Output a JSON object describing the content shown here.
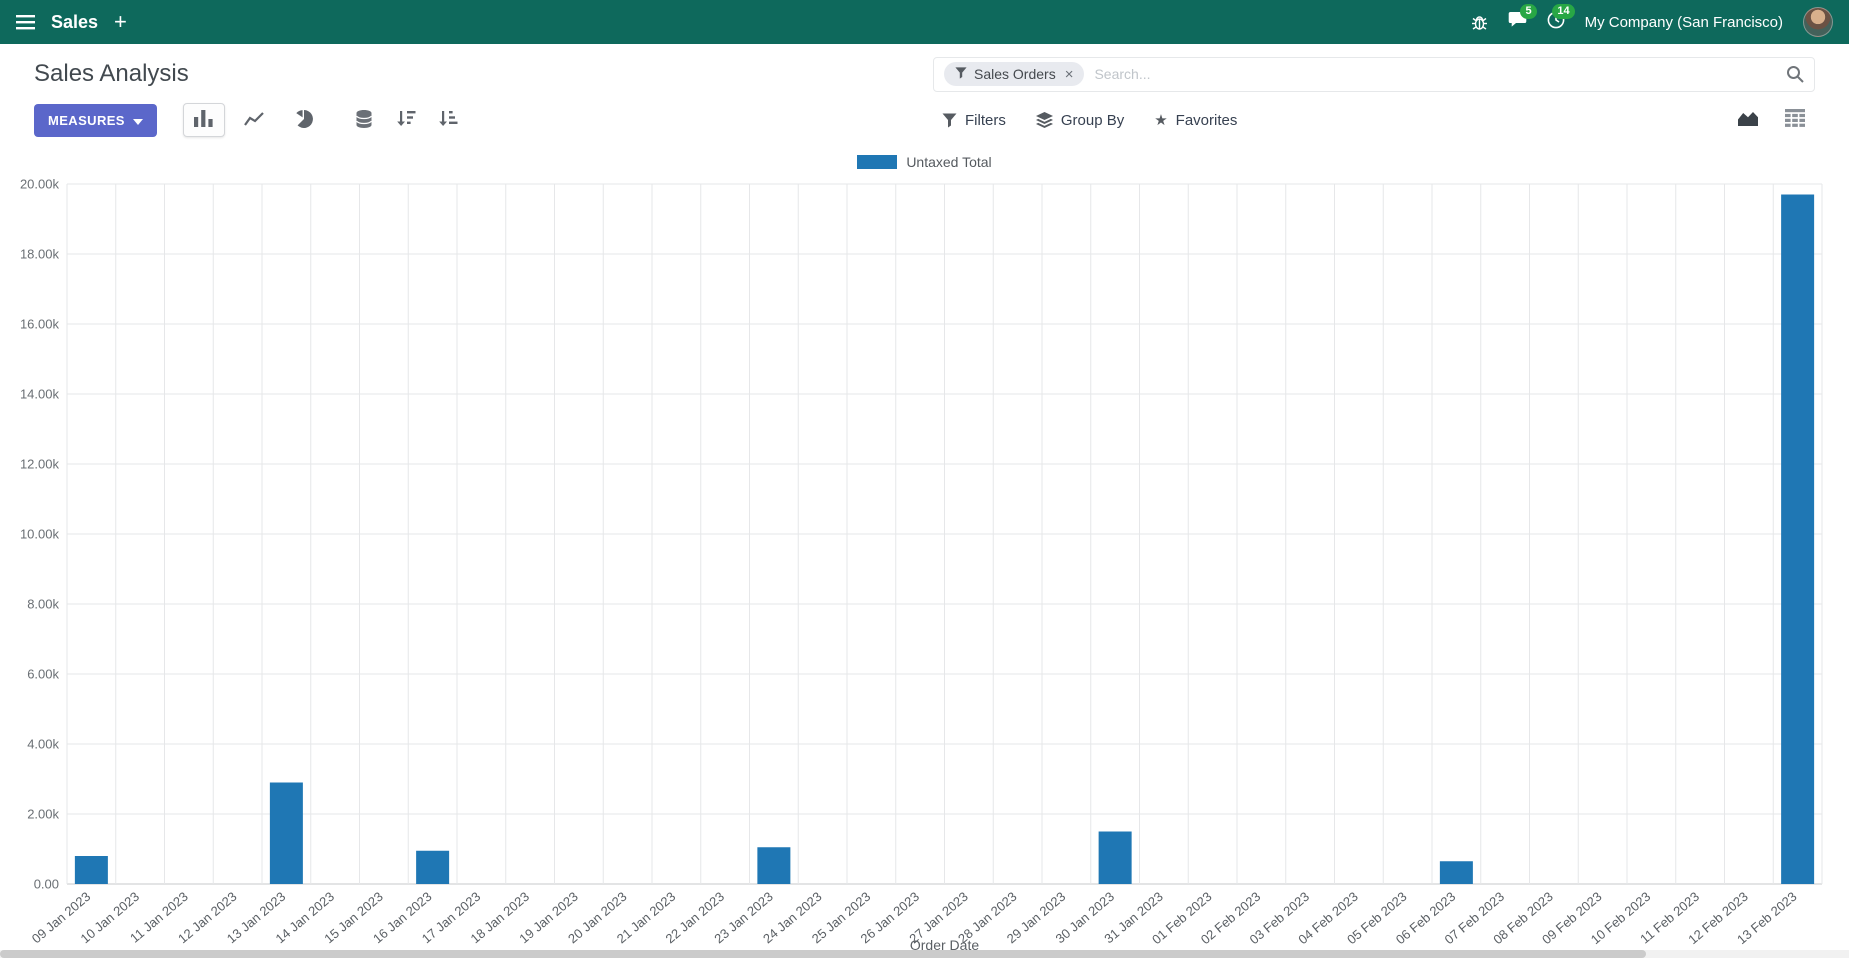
{
  "colors": {
    "navbar_bg": "#0e695c",
    "primary_button": "#5b67ca",
    "badge_green": "#28a745",
    "bar_blue": "#1f77b4"
  },
  "navbar": {
    "app_name": "Sales",
    "new_window_label": "+",
    "messages_count": "5",
    "activities_count": "14",
    "company": "My Company (San Francisco)"
  },
  "control_panel": {
    "title": "Sales Analysis",
    "search": {
      "facet_label": "Sales Orders",
      "facet_remove": "×",
      "placeholder": "Search..."
    },
    "measures_label": "Measures",
    "filters_label": "Filters",
    "group_by_label": "Group By",
    "favorites_label": "Favorites",
    "favorites_star": "★"
  },
  "icons": {
    "apps-menu-icon": "hamburger",
    "new-window-icon": "plus",
    "debug-icon": "bug",
    "messages-icon": "speech-bubble",
    "activities-icon": "clock",
    "bar-chart-icon": "bars",
    "line-chart-icon": "line",
    "pie-chart-icon": "pie",
    "stacked-icon": "database",
    "sort-descending-icon": "sort-amount-desc",
    "sort-ascending-icon": "sort-amount-asc",
    "filters-icon": "funnel",
    "group-by-icon": "layers",
    "favorites-icon": "star",
    "graph-view-icon": "area-chart",
    "pivot-view-icon": "table-grid",
    "search-icon": "magnifier"
  },
  "chart_data": {
    "type": "bar",
    "title": "",
    "xlabel": "Order Date",
    "ylabel": "",
    "ylim": [
      0,
      20000
    ],
    "grid": true,
    "legend_position": "top",
    "ytick_labels": [
      "0.00",
      "2.00k",
      "4.00k",
      "6.00k",
      "8.00k",
      "10.00k",
      "12.00k",
      "14.00k",
      "16.00k",
      "18.00k",
      "20.00k"
    ],
    "categories": [
      "09 Jan 2023",
      "10 Jan 2023",
      "11 Jan 2023",
      "12 Jan 2023",
      "13 Jan 2023",
      "14 Jan 2023",
      "15 Jan 2023",
      "16 Jan 2023",
      "17 Jan 2023",
      "18 Jan 2023",
      "19 Jan 2023",
      "20 Jan 2023",
      "21 Jan 2023",
      "22 Jan 2023",
      "23 Jan 2023",
      "24 Jan 2023",
      "25 Jan 2023",
      "26 Jan 2023",
      "27 Jan 2023",
      "28 Jan 2023",
      "29 Jan 2023",
      "30 Jan 2023",
      "31 Jan 2023",
      "01 Feb 2023",
      "02 Feb 2023",
      "03 Feb 2023",
      "04 Feb 2023",
      "05 Feb 2023",
      "06 Feb 2023",
      "07 Feb 2023",
      "08 Feb 2023",
      "09 Feb 2023",
      "10 Feb 2023",
      "11 Feb 2023",
      "12 Feb 2023",
      "13 Feb 2023"
    ],
    "series": [
      {
        "name": "Untaxed Total",
        "color": "#1f77b4",
        "values": [
          800,
          0,
          0,
          0,
          2900,
          0,
          0,
          950,
          0,
          0,
          0,
          0,
          0,
          0,
          1050,
          0,
          0,
          0,
          0,
          0,
          0,
          1500,
          0,
          0,
          0,
          0,
          0,
          0,
          650,
          0,
          0,
          0,
          0,
          0,
          0,
          19700
        ]
      }
    ]
  }
}
